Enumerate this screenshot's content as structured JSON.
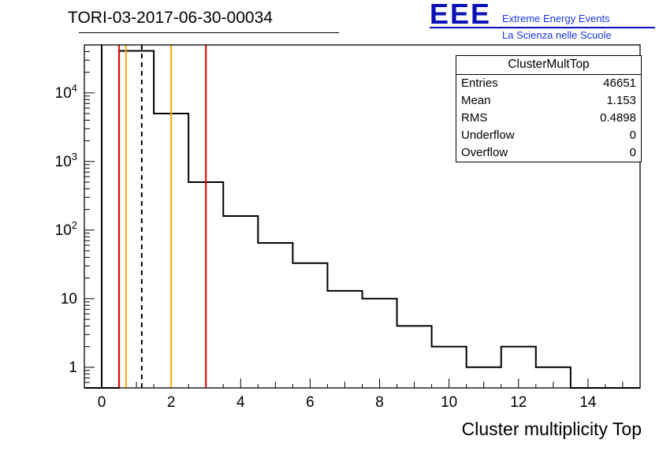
{
  "page": {
    "title": "TORI-03-2017-06-30-00034"
  },
  "logo": {
    "eee": "EEE",
    "line1": "Extreme Energy Events",
    "line2": "La Scienza nelle Scuole",
    "color_main": "#0b12b8",
    "color_text": "#1b35e8"
  },
  "stats": {
    "title": "ClusterMultTop",
    "rows": [
      {
        "label": "Entries",
        "value": "46651"
      },
      {
        "label": "Mean",
        "value": "1.153"
      },
      {
        "label": "RMS",
        "value": "0.4898"
      },
      {
        "label": "Underflow",
        "value": "0"
      },
      {
        "label": "Overflow",
        "value": "0"
      }
    ]
  },
  "chart_data": {
    "type": "bar",
    "style": "step-histogram-outline",
    "title": "TORI-03-2017-06-30-00034",
    "xlabel": "Cluster multiplicity Top",
    "ylabel": "",
    "ylog": true,
    "xlim": [
      -0.5,
      15.5
    ],
    "ylim": [
      0.5,
      50000
    ],
    "bin_centers": [
      0,
      1,
      2,
      3,
      4,
      5,
      6,
      7,
      8,
      9,
      10,
      11,
      12,
      13,
      14,
      15
    ],
    "values": [
      0,
      41000,
      5000,
      500,
      160,
      65,
      33,
      13,
      10,
      4,
      2,
      1,
      2,
      1,
      0,
      0
    ],
    "x_major_ticks": [
      0,
      2,
      4,
      6,
      8,
      10,
      12,
      14
    ],
    "y_decade_labels": [
      "1",
      "10",
      "10^2",
      "10^3",
      "10^4"
    ],
    "line_color": "#000000",
    "marker_lines": [
      {
        "x": 0.0,
        "color": "#000000",
        "style": "solid",
        "name": "limit-line-black"
      },
      {
        "x": 0.5,
        "color": "#ee0000",
        "style": "solid",
        "name": "alarm-low-red-line"
      },
      {
        "x": 0.7,
        "color": "#ffa500",
        "style": "solid",
        "name": "warning-low-orange-line"
      },
      {
        "x": 1.153,
        "color": "#000000",
        "style": "dashed",
        "name": "mean-dashed-line"
      },
      {
        "x": 2.0,
        "color": "#ffa500",
        "style": "solid",
        "name": "warning-high-orange-line"
      },
      {
        "x": 3.0,
        "color": "#ee0000",
        "style": "solid",
        "name": "alarm-high-red-line"
      }
    ],
    "legend": "none",
    "grid": false
  }
}
